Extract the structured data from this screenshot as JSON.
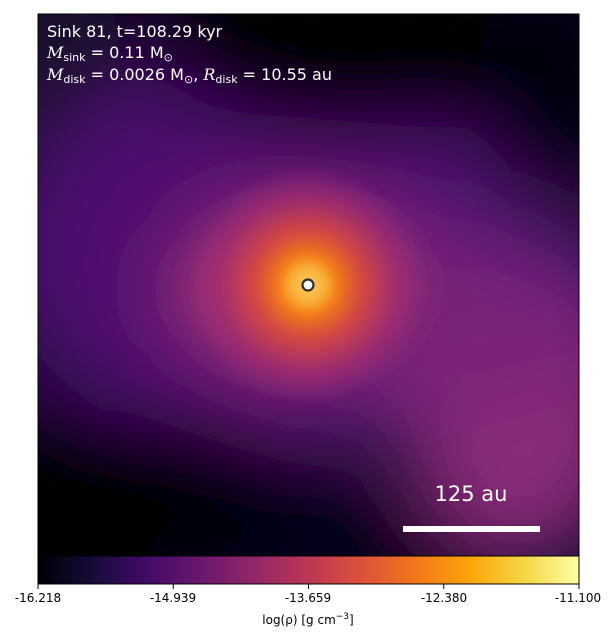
{
  "annotation": {
    "line1": "Sink 81, t=108.29 kyr",
    "msink_symbol": "M",
    "msink_sub": "sink",
    "msink_value": " = 0.11 M",
    "msink_unit_sub": "⊙",
    "mdisk_symbol": "M",
    "mdisk_sub": "disk",
    "mdisk_value": " = 0.0026 M",
    "mdisk_unit_sub": "⊙",
    "rdisk_sep": ", ",
    "rdisk_symbol": "R",
    "rdisk_sub": "disk",
    "rdisk_value": " = 10.55 au"
  },
  "scalebar": {
    "label": "125 au"
  },
  "colorbar": {
    "ticks": [
      "-16.218",
      "-14.939",
      "-13.659",
      "-12.380",
      "-11.100"
    ],
    "label_prefix": "log(ρ) [g cm",
    "label_exp": "−3",
    "label_suffix": "]",
    "colormap": "inferno-like",
    "range": [
      -16.218,
      -11.1
    ]
  },
  "colors": {
    "background_dark": "#000004",
    "low_purple": "#3b0f70",
    "mid_magenta": "#8c2981",
    "orange": "#f57d15",
    "high_yellow": "#fcffa4",
    "sink_marker": "#ffffff"
  }
}
